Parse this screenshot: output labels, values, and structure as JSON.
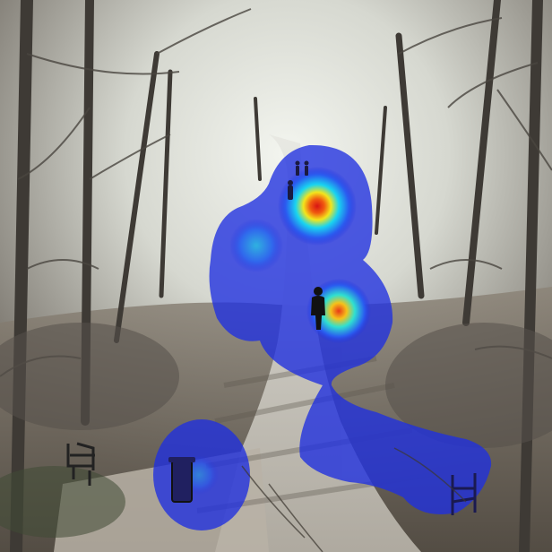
{
  "image": {
    "subject": "forest-path-with-heatmap-overlay",
    "palette": {
      "fog": "#e9ece6",
      "fog_mid": "#c9cbc3",
      "trees_dark": "#4a4640",
      "ground": "#6f6558",
      "path": "#c9c6bd",
      "heat_low": "#1f2fe0",
      "heat_mid": "#19d4f0",
      "heat_high_yellow": "#f3e51c",
      "heat_peak": "#d81414"
    },
    "heatmap": {
      "colormap": "jet",
      "blobs": [
        {
          "label": "upper-path-far-walkers",
          "intensity": 1.0
        },
        {
          "label": "left-mid-path",
          "intensity": 0.45
        },
        {
          "label": "walker-on-path",
          "intensity": 0.9
        },
        {
          "label": "lower-right-bench-area",
          "intensity": 0.3
        },
        {
          "label": "lower-left-trash-bin",
          "intensity": 0.35
        }
      ]
    },
    "objects": {
      "icons": [
        "person-silhouette-icon",
        "bench-icon",
        "trash-bin-icon"
      ]
    }
  }
}
